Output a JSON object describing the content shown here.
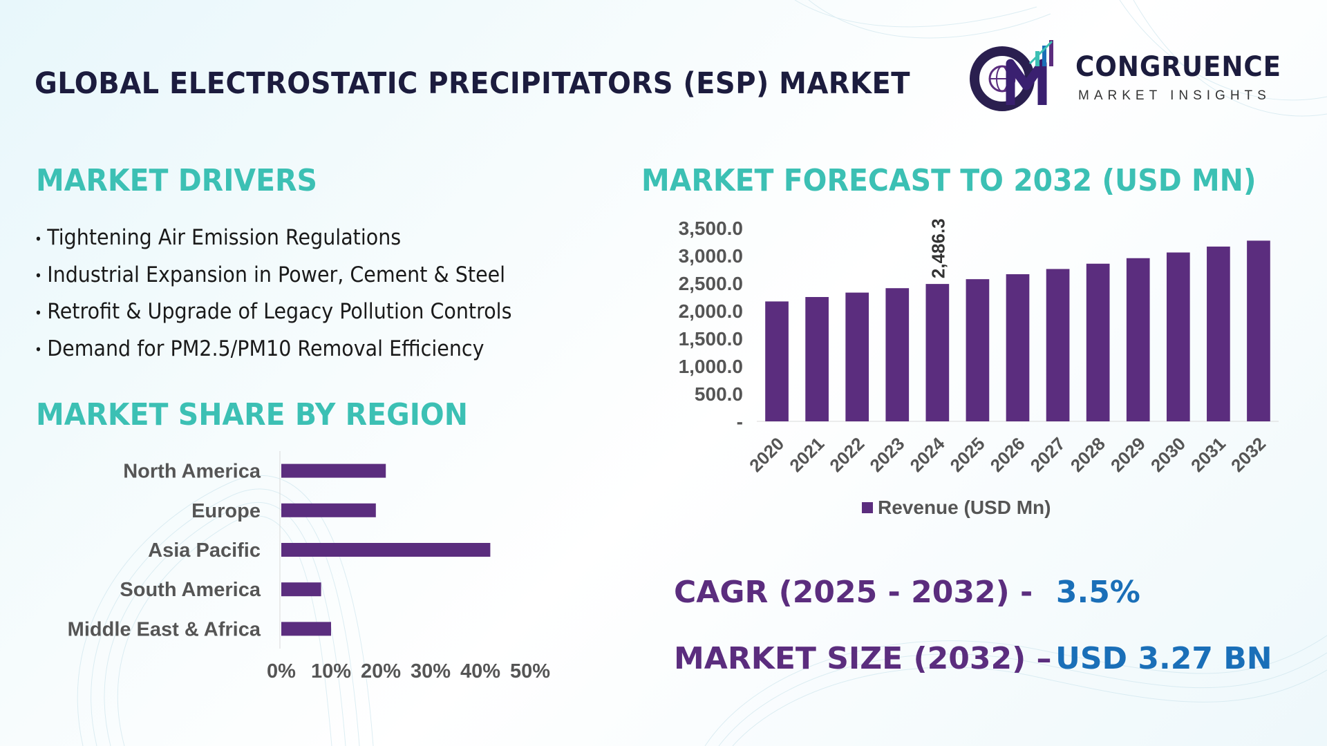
{
  "title": "GLOBAL ELECTROSTATIC PRECIPITATORS (ESP) MARKET",
  "logo": {
    "name": "CONGRUENCE",
    "sub": "MARKET INSIGHTS",
    "icon": "cm-globe-logo-icon"
  },
  "drivers": {
    "heading": "MARKET DRIVERS",
    "bullet": "•",
    "items": [
      "Tightening Air Emission Regulations",
      "Industrial Expansion in Power, Cement & Steel",
      "Retrofit & Upgrade of Legacy Pollution Controls",
      "Demand for PM2.5/PM10 Removal Efficiency"
    ]
  },
  "region": {
    "heading": "MARKET SHARE BY REGION"
  },
  "forecast": {
    "heading": "MARKET FORECAST TO 2032 (USD MN)"
  },
  "stats": {
    "cagr_label": "CAGR (2025 - 2032) -",
    "cagr_value": "3.5%",
    "size_label": "MARKET SIZE (2032) –",
    "size_value": "USD 3.27 BN"
  },
  "colors": {
    "bar": "#5b2d7e",
    "heading": "#3cc0b4",
    "title": "#1c1c3e",
    "stat_label": "#5b2d7e",
    "stat_value": "#1a6fb8"
  },
  "chart_data": [
    {
      "type": "bar",
      "title": "MARKET FORECAST TO 2032 (USD MN)",
      "categories": [
        "2020",
        "2021",
        "2022",
        "2023",
        "2024",
        "2025",
        "2026",
        "2027",
        "2028",
        "2029",
        "2030",
        "2031",
        "2032"
      ],
      "series": [
        {
          "name": "Revenue (USD Mn)",
          "values": [
            2170,
            2250,
            2330,
            2410,
            2486.3,
            2573,
            2663,
            2757,
            2853,
            2953,
            3056,
            3163,
            3270
          ]
        }
      ],
      "data_label": {
        "category": "2024",
        "text": "2,486.3"
      },
      "yticks": [
        0,
        500,
        1000,
        1500,
        2000,
        2500,
        3000,
        3500
      ],
      "ytick_labels": [
        "-",
        "500.0",
        "1,000.0",
        "1,500.0",
        "2,000.0",
        "2,500.0",
        "3,000.0",
        "3,500.0"
      ],
      "ylim": [
        0,
        3500
      ],
      "legend": "Revenue (USD Mn)",
      "legend_position": "bottom",
      "grid": false
    },
    {
      "type": "bar",
      "orientation": "horizontal",
      "title": "MARKET SHARE BY REGION",
      "categories": [
        "North America",
        "Europe",
        "Asia Pacific",
        "South America",
        "Middle East & Africa"
      ],
      "values": [
        21,
        19,
        42,
        8,
        10
      ],
      "xticks": [
        0,
        10,
        20,
        30,
        40,
        50
      ],
      "xtick_labels": [
        "0%",
        "10%",
        "20%",
        "30%",
        "40%",
        "50%"
      ],
      "xlim": [
        0,
        50
      ],
      "grid": false
    }
  ]
}
